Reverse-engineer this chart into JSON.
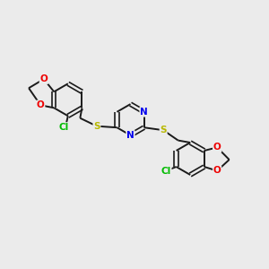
{
  "bg_color": "#ebebeb",
  "bond_color": "#1a1a1a",
  "bond_width": 1.4,
  "atom_colors": {
    "N": "#0000ee",
    "S": "#b8b800",
    "O": "#ee0000",
    "Cl": "#00bb00",
    "C": "#1a1a1a"
  },
  "font_size": 7.0,
  "figsize": [
    3.0,
    3.0
  ],
  "dpi": 100
}
